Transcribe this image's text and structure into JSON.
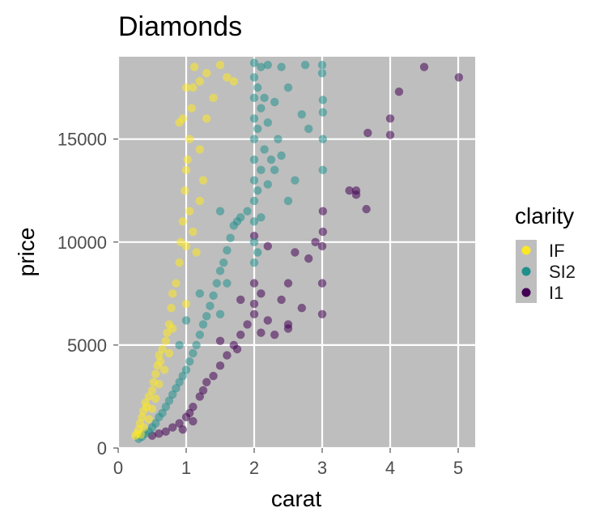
{
  "chart_data": {
    "type": "scatter",
    "title": "Diamonds",
    "xlabel": "carat",
    "ylabel": "price",
    "xlim": [
      0,
      5.25
    ],
    "ylim": [
      0,
      19000
    ],
    "x_ticks": [
      0,
      1,
      2,
      3,
      4,
      5
    ],
    "y_ticks": [
      0,
      5000,
      10000,
      15000
    ],
    "x_tick_labels": [
      "0",
      "1",
      "2",
      "3",
      "4",
      "5"
    ],
    "y_tick_labels": [
      "0",
      "5000",
      "10000",
      "15000"
    ],
    "grid": true,
    "legend": {
      "title": "clarity",
      "position": "right"
    },
    "series": [
      {
        "name": "IF",
        "color": "#fde725",
        "points": [
          [
            0.25,
            600
          ],
          [
            0.28,
            700
          ],
          [
            0.3,
            900
          ],
          [
            0.32,
            1200
          ],
          [
            0.35,
            1500
          ],
          [
            0.37,
            1800
          ],
          [
            0.4,
            2200
          ],
          [
            0.42,
            2000
          ],
          [
            0.45,
            2500
          ],
          [
            0.5,
            2800
          ],
          [
            0.52,
            3200
          ],
          [
            0.55,
            3600
          ],
          [
            0.58,
            4000
          ],
          [
            0.6,
            4500
          ],
          [
            0.62,
            4200
          ],
          [
            0.65,
            4800
          ],
          [
            0.7,
            5200
          ],
          [
            0.72,
            5600
          ],
          [
            0.75,
            6000
          ],
          [
            0.78,
            6800
          ],
          [
            0.8,
            7500
          ],
          [
            0.85,
            8000
          ],
          [
            0.9,
            9000
          ],
          [
            0.92,
            10000
          ],
          [
            0.95,
            11000
          ],
          [
            0.98,
            12500
          ],
          [
            1.0,
            13500
          ],
          [
            1.02,
            14000
          ],
          [
            1.05,
            15000
          ],
          [
            1.08,
            16500
          ],
          [
            1.1,
            17500
          ],
          [
            1.12,
            18500
          ],
          [
            0.9,
            15800
          ],
          [
            1.2,
            17800
          ],
          [
            1.3,
            18200
          ],
          [
            1.4,
            17000
          ],
          [
            1.5,
            18600
          ],
          [
            1.6,
            18000
          ],
          [
            1.7,
            17800
          ],
          [
            1.05,
            11500
          ],
          [
            1.1,
            10500
          ],
          [
            1.15,
            9500
          ],
          [
            1.2,
            12000
          ],
          [
            1.25,
            13000
          ],
          [
            0.68,
            3800
          ],
          [
            0.55,
            2400
          ],
          [
            0.45,
            1400
          ],
          [
            0.38,
            1000
          ],
          [
            0.33,
            650
          ],
          [
            0.6,
            3100
          ],
          [
            0.8,
            5800
          ],
          [
            1.0,
            9800
          ],
          [
            1.0,
            7000
          ],
          [
            0.75,
            4600
          ],
          [
            0.5,
            1900
          ],
          [
            1.3,
            16000
          ],
          [
            1.2,
            14500
          ],
          [
            1.0,
            17500
          ],
          [
            0.95,
            16000
          ]
        ]
      },
      {
        "name": "SI2",
        "color": "#21908d",
        "points": [
          [
            0.3,
            450
          ],
          [
            0.35,
            550
          ],
          [
            0.4,
            700
          ],
          [
            0.45,
            800
          ],
          [
            0.5,
            1000
          ],
          [
            0.55,
            1200
          ],
          [
            0.6,
            1500
          ],
          [
            0.65,
            1700
          ],
          [
            0.7,
            2000
          ],
          [
            0.75,
            2300
          ],
          [
            0.8,
            2600
          ],
          [
            0.85,
            2900
          ],
          [
            0.9,
            3200
          ],
          [
            0.95,
            3500
          ],
          [
            1.0,
            3800
          ],
          [
            1.05,
            4200
          ],
          [
            1.1,
            4600
          ],
          [
            1.15,
            5000
          ],
          [
            1.2,
            5500
          ],
          [
            1.25,
            6000
          ],
          [
            1.3,
            6400
          ],
          [
            1.35,
            6900
          ],
          [
            1.4,
            7400
          ],
          [
            1.45,
            8000
          ],
          [
            1.5,
            8600
          ],
          [
            1.55,
            9000
          ],
          [
            1.6,
            9600
          ],
          [
            1.65,
            10200
          ],
          [
            1.7,
            10800
          ],
          [
            1.75,
            11000
          ],
          [
            1.8,
            11200
          ],
          [
            1.9,
            11500
          ],
          [
            2.0,
            11000
          ],
          [
            2.0,
            12000
          ],
          [
            2.0,
            13000
          ],
          [
            2.0,
            14000
          ],
          [
            2.0,
            15000
          ],
          [
            2.0,
            16000
          ],
          [
            2.0,
            17000
          ],
          [
            2.0,
            18000
          ],
          [
            2.0,
            18700
          ],
          [
            2.05,
            12500
          ],
          [
            2.05,
            15500
          ],
          [
            2.05,
            17500
          ],
          [
            2.1,
            13500
          ],
          [
            2.1,
            16500
          ],
          [
            2.1,
            18500
          ],
          [
            2.15,
            14500
          ],
          [
            2.15,
            17000
          ],
          [
            2.2,
            12800
          ],
          [
            2.2,
            15800
          ],
          [
            2.2,
            18600
          ],
          [
            2.25,
            14000
          ],
          [
            2.3,
            13500
          ],
          [
            2.3,
            16800
          ],
          [
            2.35,
            15000
          ],
          [
            2.4,
            14200
          ],
          [
            2.4,
            18500
          ],
          [
            2.5,
            12000
          ],
          [
            2.5,
            17500
          ],
          [
            2.6,
            13000
          ],
          [
            2.7,
            16200
          ],
          [
            2.75,
            18600
          ],
          [
            2.8,
            15500
          ],
          [
            3.0,
            18200
          ],
          [
            3.0,
            18600
          ],
          [
            3.01,
            16900
          ],
          [
            3.01,
            16300
          ],
          [
            3.01,
            15000
          ],
          [
            3.01,
            13500
          ],
          [
            2.0,
            9000
          ],
          [
            2.0,
            10000
          ],
          [
            2.05,
            9500
          ],
          [
            2.1,
            11200
          ],
          [
            1.5,
            6500
          ],
          [
            1.5,
            11500
          ],
          [
            1.6,
            8000
          ],
          [
            1.2,
            7500
          ],
          [
            1.0,
            6200
          ],
          [
            0.9,
            5000
          ]
        ]
      },
      {
        "name": "I1",
        "color": "#440154",
        "points": [
          [
            0.5,
            600
          ],
          [
            0.6,
            700
          ],
          [
            0.7,
            800
          ],
          [
            0.8,
            1000
          ],
          [
            0.9,
            1200
          ],
          [
            1.0,
            1500
          ],
          [
            1.05,
            1700
          ],
          [
            1.1,
            2000
          ],
          [
            1.2,
            2500
          ],
          [
            1.25,
            2800
          ],
          [
            1.3,
            3200
          ],
          [
            1.4,
            3500
          ],
          [
            1.5,
            4000
          ],
          [
            1.6,
            4500
          ],
          [
            1.7,
            5000
          ],
          [
            1.8,
            5500
          ],
          [
            1.9,
            6000
          ],
          [
            2.0,
            6500
          ],
          [
            2.0,
            7000
          ],
          [
            2.0,
            8000
          ],
          [
            2.1,
            5600
          ],
          [
            2.1,
            7500
          ],
          [
            2.2,
            6200
          ],
          [
            2.3,
            5500
          ],
          [
            2.4,
            7200
          ],
          [
            2.5,
            8000
          ],
          [
            2.5,
            6000
          ],
          [
            2.6,
            9500
          ],
          [
            2.7,
            6800
          ],
          [
            2.8,
            9200
          ],
          [
            2.9,
            10000
          ],
          [
            3.0,
            6500
          ],
          [
            3.0,
            8000
          ],
          [
            3.0,
            9800
          ],
          [
            3.01,
            10500
          ],
          [
            3.01,
            11500
          ],
          [
            3.4,
            12500
          ],
          [
            3.5,
            12300
          ],
          [
            3.65,
            11600
          ],
          [
            3.5,
            12500
          ],
          [
            3.67,
            15300
          ],
          [
            4.0,
            15200
          ],
          [
            4.0,
            16000
          ],
          [
            4.13,
            17300
          ],
          [
            4.5,
            18500
          ],
          [
            5.01,
            18000
          ],
          [
            1.5,
            5200
          ],
          [
            1.75,
            4800
          ],
          [
            1.8,
            7200
          ],
          [
            2.2,
            9800
          ],
          [
            2.0,
            10300
          ],
          [
            2.5,
            5800
          ],
          [
            1.1,
            1300
          ],
          [
            0.95,
            900
          ]
        ]
      }
    ]
  }
}
